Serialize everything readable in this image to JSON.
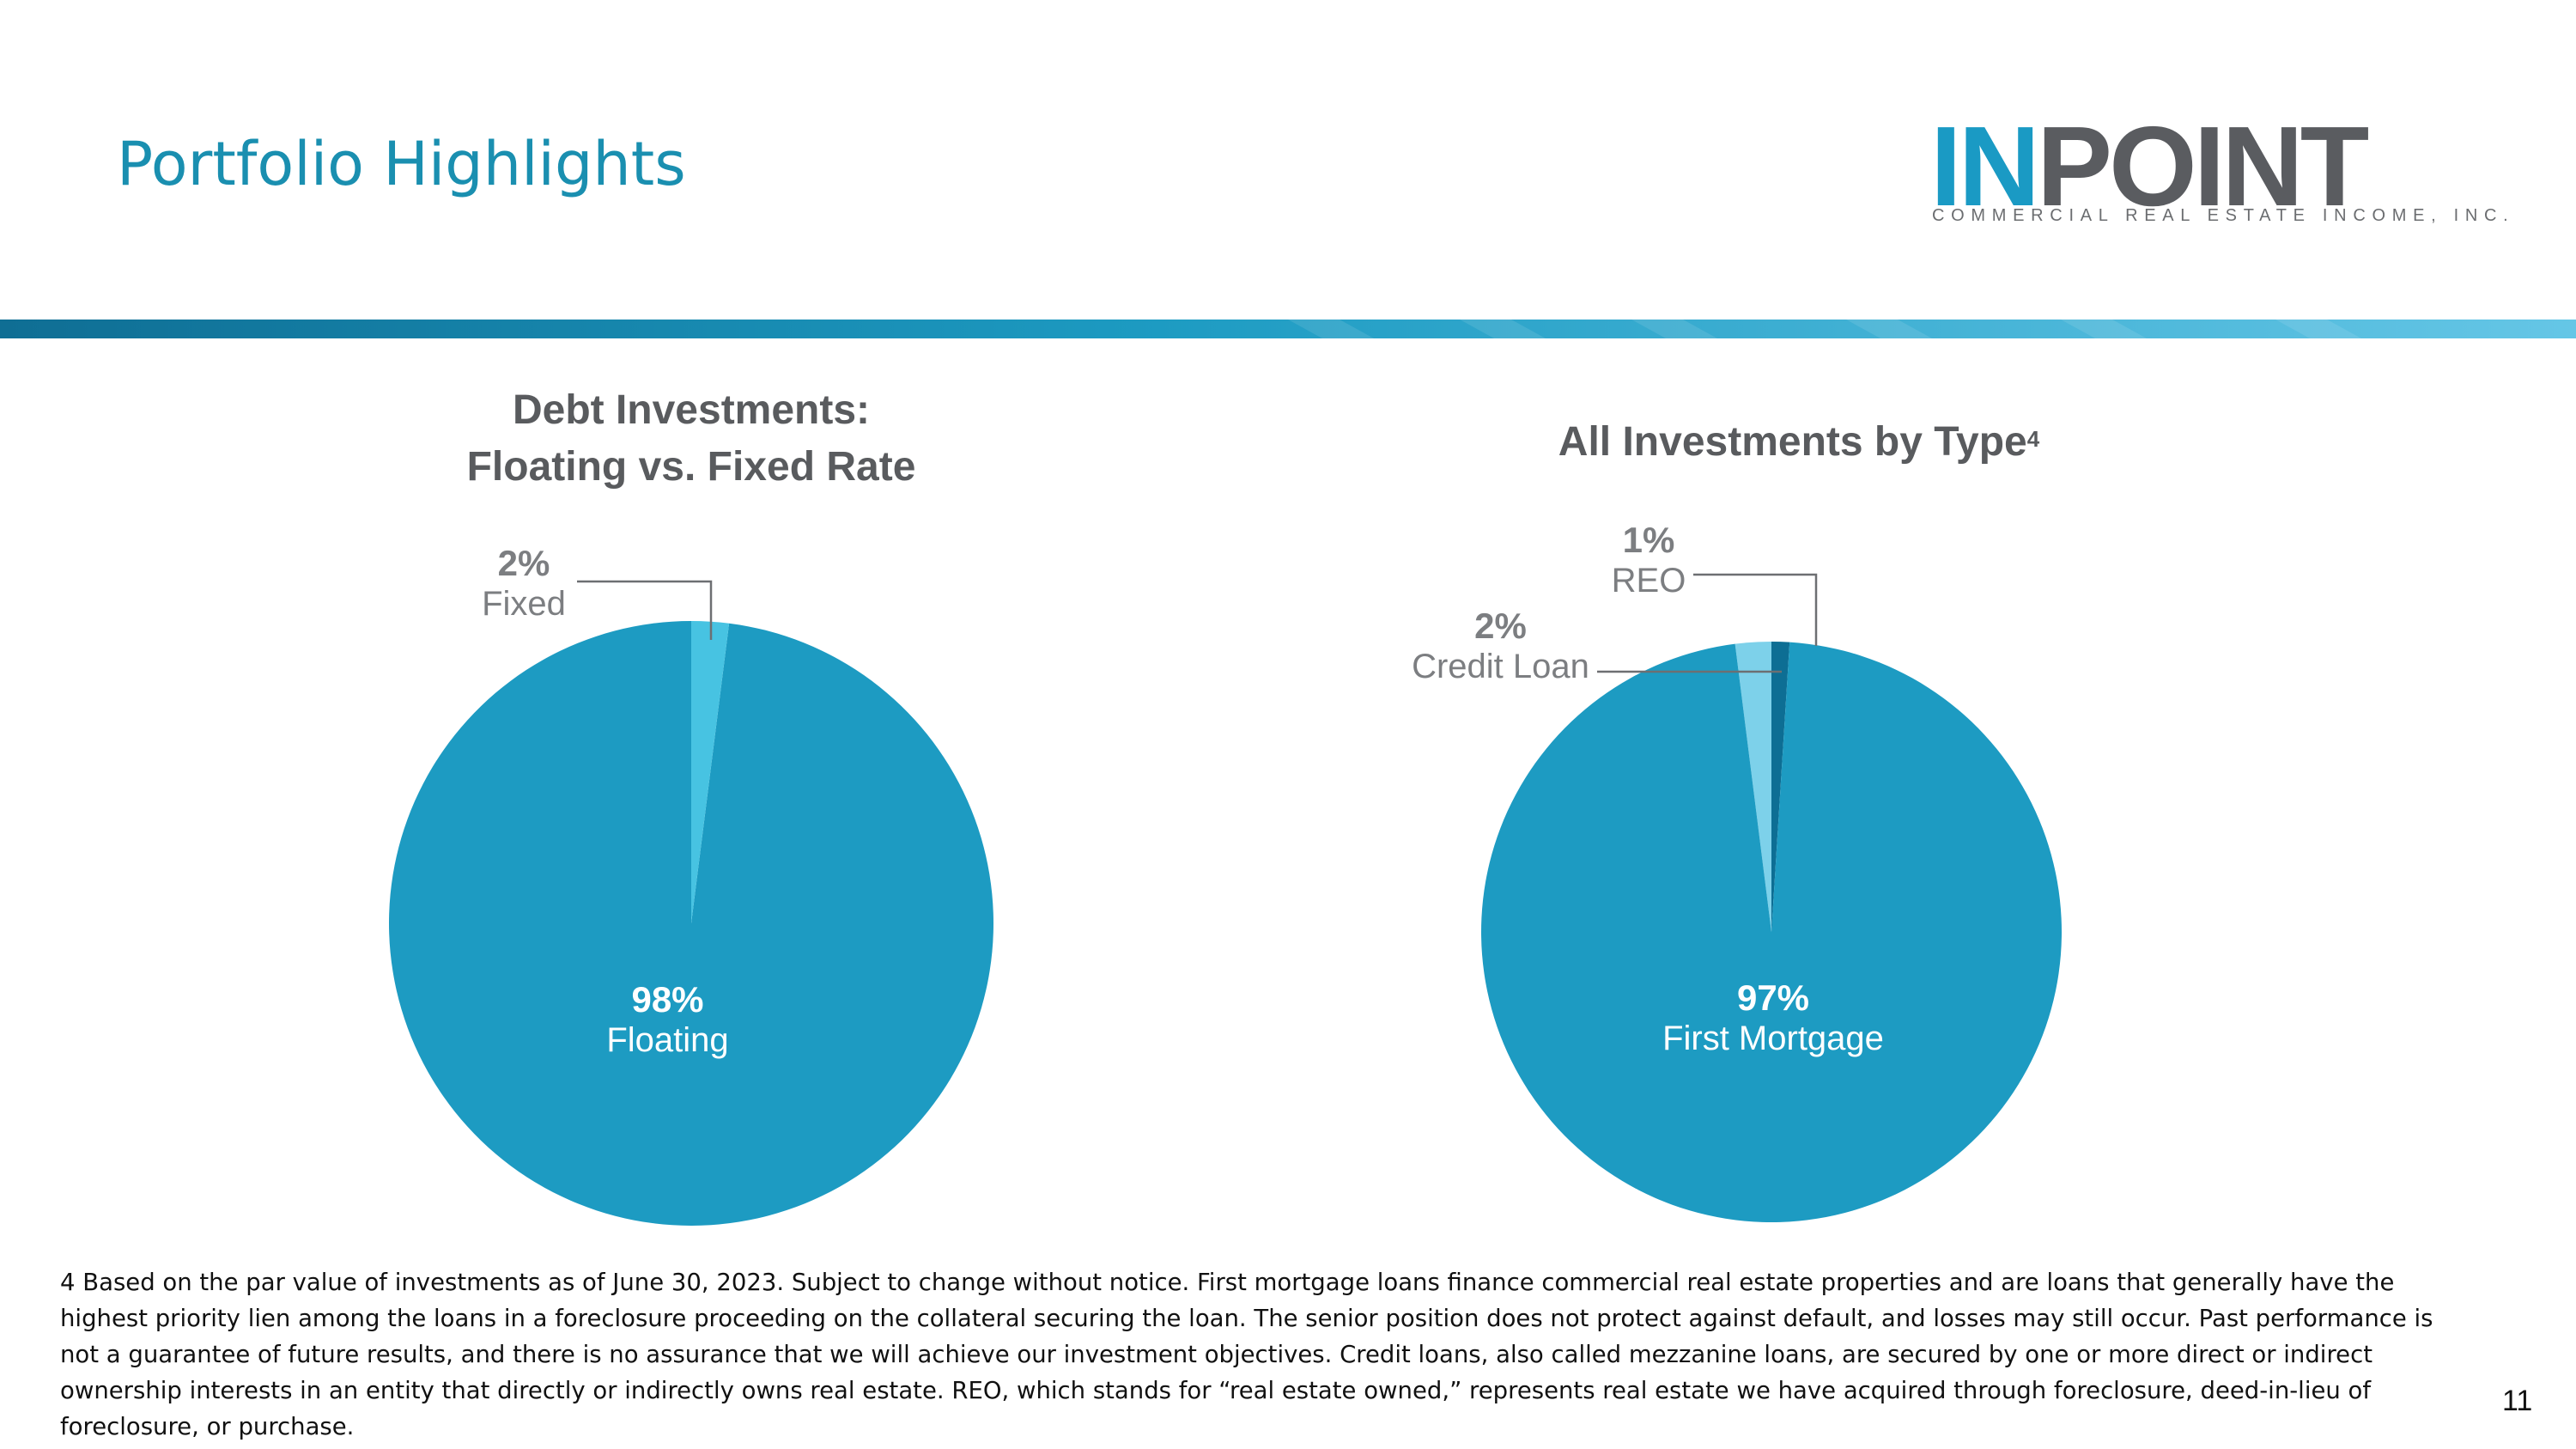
{
  "page": {
    "title": "Portfolio Highlights",
    "page_number": "11"
  },
  "logo": {
    "main_left": "IN",
    "main_right": "POINT",
    "subtitle": "COMMERCIAL REAL ESTATE INCOME, INC."
  },
  "colors": {
    "title": "#1a8fb0",
    "pie_main": "#1d9bc2",
    "pie_light": "#47c3e2",
    "pie_lighter": "#7dd1ea",
    "pie_dark": "#0d6e94",
    "label_gray": "#7c7e81",
    "band_dark": "#0f6e94",
    "band_light": "#65c6e6"
  },
  "charts": [
    {
      "title_line1": "Debt Investments:",
      "title_line2": "Floating vs. Fixed Rate",
      "labels": [
        {
          "pct": "98%",
          "name": "Floating"
        },
        {
          "pct": "2%",
          "name": "Fixed"
        }
      ]
    },
    {
      "title": "All Investments by Type",
      "title_sup": "4",
      "labels": [
        {
          "pct": "97%",
          "name": "First Mortgage"
        },
        {
          "pct": "2%",
          "name": "Credit Loan"
        },
        {
          "pct": "1%",
          "name": "REO"
        }
      ]
    }
  ],
  "chart_data": [
    {
      "type": "pie",
      "title": "Debt Investments: Floating vs. Fixed Rate",
      "categories": [
        "Floating",
        "Fixed"
      ],
      "values": [
        98,
        2
      ],
      "colors": [
        "#1d9bc2",
        "#47c3e2"
      ]
    },
    {
      "type": "pie",
      "title": "All Investments by Type",
      "categories": [
        "First Mortgage",
        "Credit Loan",
        "REO"
      ],
      "values": [
        97,
        2,
        1
      ],
      "colors": [
        "#1d9bc2",
        "#7dd1ea",
        "#0d6e94"
      ]
    }
  ],
  "footnote": "4 Based on the par value of investments as of June 30, 2023. Subject to change without notice. First mortgage loans finance commercial real estate properties and are loans that generally have the highest priority lien among the loans in a foreclosure proceeding on the collateral securing the loan. The senior position does not protect against default, and losses may still occur. Past performance is not a guarantee of future results, and there is no assurance that we will achieve our investment objectives. Credit loans, also called mezzanine loans, are secured by one or more direct or indirect ownership interests in an entity that directly or indirectly owns real estate. REO, which stands for “real estate owned,” represents real estate we have acquired through foreclosure, deed-in-lieu of foreclosure, or purchase."
}
